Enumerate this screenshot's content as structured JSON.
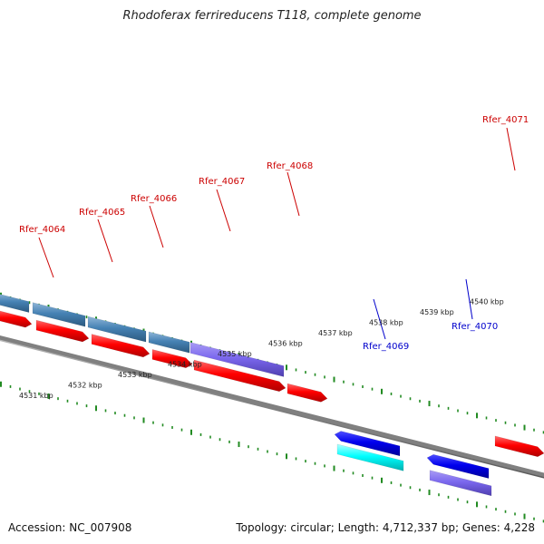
{
  "title": "Rhodoferax ferrireducens T118, complete genome",
  "footer": {
    "accession": "Accession: NC_007908",
    "summary": "Topology: circular; Length: 4,712,337 bp; Genes: 4,228"
  },
  "colors": {
    "forward_gene": "#ff0000",
    "reverse_gene": "#0000ee",
    "reverse_cds": "#00ffff",
    "feature_steel": "#4682b4",
    "feature_purple": "#7b68ee",
    "backbone": "#808080",
    "ticks": "#228b22",
    "label_forward": "#cc0000",
    "label_reverse": "#0000cc"
  },
  "axis_ticks": [
    {
      "label": "4531 kbp"
    },
    {
      "label": "4532 kbp"
    },
    {
      "label": "4533 kbp"
    },
    {
      "label": "4534 kbp"
    },
    {
      "label": "4535 kbp"
    },
    {
      "label": "4536 kbp"
    },
    {
      "label": "4537 kbp"
    },
    {
      "label": "4538 kbp"
    },
    {
      "label": "4539 kbp"
    },
    {
      "label": "4540 kbp"
    }
  ],
  "gene_labels": [
    {
      "name": "Rfer_4064",
      "strand": "forward"
    },
    {
      "name": "Rfer_4065",
      "strand": "forward"
    },
    {
      "name": "Rfer_4066",
      "strand": "forward"
    },
    {
      "name": "Rfer_4067",
      "strand": "forward"
    },
    {
      "name": "Rfer_4068",
      "strand": "forward"
    },
    {
      "name": "Rfer_4069",
      "strand": "reverse"
    },
    {
      "name": "Rfer_4070",
      "strand": "reverse"
    },
    {
      "name": "Rfer_4071",
      "strand": "forward"
    }
  ]
}
